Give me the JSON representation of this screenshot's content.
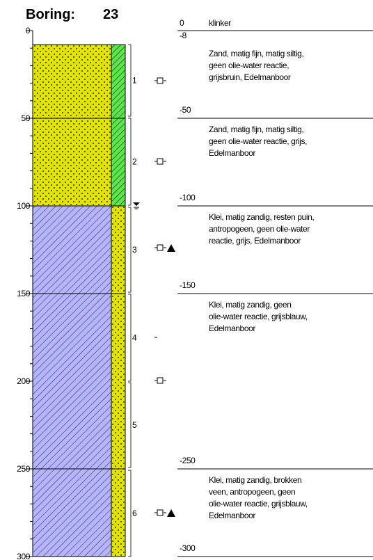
{
  "header": {
    "label": "Boring:",
    "number": "23"
  },
  "depth_axis": {
    "range": [
      0,
      300
    ],
    "ticks": [
      0,
      50,
      100,
      150,
      200,
      250,
      300
    ]
  },
  "intervals": [
    {
      "depth": {
        "value": 0,
        "label": "0"
      },
      "description": [
        "klinker"
      ]
    },
    {
      "depth": {
        "value": 8,
        "label": "-8"
      },
      "description": [
        "Zand, matig fijn, matig siltig,",
        "geen olie-water reactie,",
        "grijsbruin, Edelmanboor"
      ]
    },
    {
      "depth": {
        "value": 50,
        "label": "-50"
      },
      "description": [
        "Zand, matig fijn, matig siltig,",
        "geen olie-water reactie, grijs,",
        "Edelmanboor"
      ]
    },
    {
      "depth": {
        "value": 100,
        "label": "-100"
      },
      "description": [
        "Klei, matig zandig, resten puin,",
        "antropogeen, geen olie-water",
        "reactie, grijs, Edelmanboor"
      ]
    },
    {
      "depth": {
        "value": 150,
        "label": "-150"
      },
      "description": [
        "Klei, matig zandig, geen",
        "olie-water reactie, grijsblauw,",
        "Edelmanboor"
      ]
    },
    {
      "depth": {
        "value": 250,
        "label": "-250"
      },
      "description": [
        "Klei, matig zandig, brokken",
        "veen, antropogeen, geen",
        "olie-water reactie, grijsblauw,",
        "Edelmanboor"
      ]
    },
    {
      "depth": {
        "value": 300,
        "label": "-300"
      },
      "description": []
    }
  ],
  "samples": [
    {
      "label": "1"
    },
    {
      "label": "2"
    },
    {
      "label": "3"
    },
    {
      "label": "4"
    },
    {
      "label": "5"
    },
    {
      "label": "6"
    }
  ]
}
